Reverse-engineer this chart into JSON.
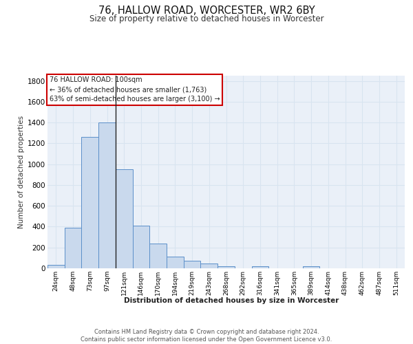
{
  "title": "76, HALLOW ROAD, WORCESTER, WR2 6BY",
  "subtitle": "Size of property relative to detached houses in Worcester",
  "xlabel": "Distribution of detached houses by size in Worcester",
  "ylabel": "Number of detached properties",
  "footnote": "Contains HM Land Registry data © Crown copyright and database right 2024.\nContains public sector information licensed under the Open Government Licence v3.0.",
  "categories": [
    "24sqm",
    "48sqm",
    "73sqm",
    "97sqm",
    "121sqm",
    "146sqm",
    "170sqm",
    "194sqm",
    "219sqm",
    "243sqm",
    "268sqm",
    "292sqm",
    "316sqm",
    "341sqm",
    "365sqm",
    "389sqm",
    "414sqm",
    "438sqm",
    "462sqm",
    "487sqm",
    "511sqm"
  ],
  "values": [
    30,
    390,
    1260,
    1400,
    950,
    410,
    235,
    115,
    70,
    45,
    18,
    0,
    18,
    0,
    0,
    18,
    0,
    0,
    0,
    0,
    0
  ],
  "bar_color": "#c9d9ed",
  "bar_edge_color": "#5b8fc9",
  "grid_color": "#d8e4f0",
  "bg_color": "#eaf0f8",
  "marker_line_color": "#222222",
  "annotation_line1": "76 HALLOW ROAD: 100sqm",
  "annotation_line2": "← 36% of detached houses are smaller (1,763)",
  "annotation_line3": "63% of semi-detached houses are larger (3,100) →",
  "annotation_box_color": "white",
  "annotation_box_edge": "#cc0000",
  "ylim": [
    0,
    1850
  ],
  "yticks": [
    0,
    200,
    400,
    600,
    800,
    1000,
    1200,
    1400,
    1600,
    1800
  ]
}
